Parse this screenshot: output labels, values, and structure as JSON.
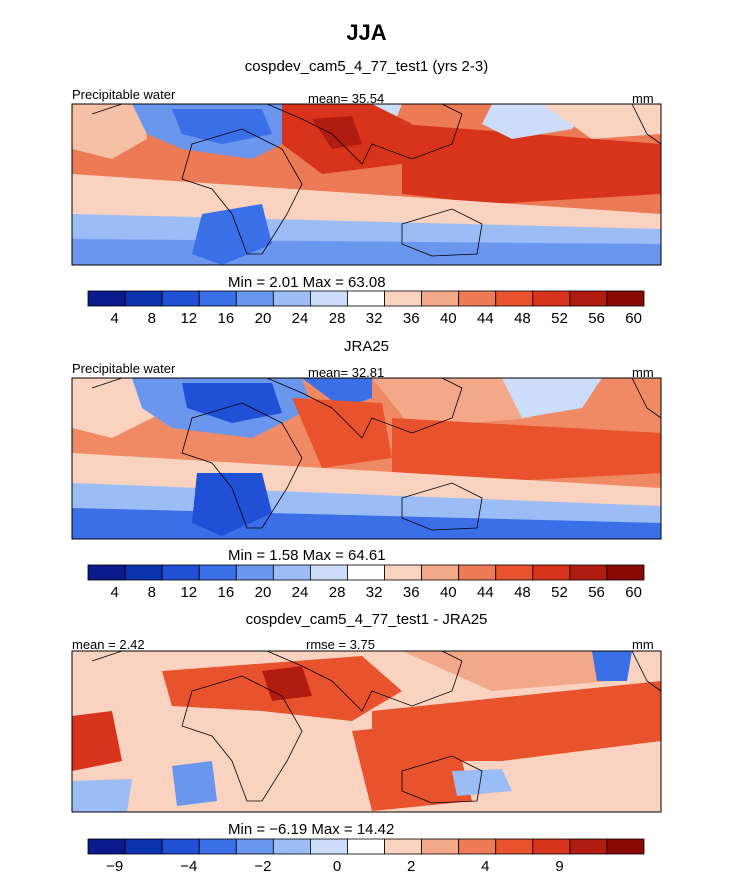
{
  "season": "JJA",
  "panels": [
    {
      "title": "cospdev_cam5_4_77_test1 (yrs 2-3)",
      "left_label": "Precipitable water",
      "mid_label": "mean=   35.54",
      "units": "mm",
      "stats": "Min =    2.01  Max =   63.08",
      "colorbar": {
        "colors": [
          "#0a1a8c",
          "#0b33b0",
          "#1f50d6",
          "#3a6fe8",
          "#6a96ee",
          "#9bbcf4",
          "#cbddf8",
          "#ffffff",
          "#f9d2c0",
          "#f4a88a",
          "#ef7b56",
          "#e8532e",
          "#d8341b",
          "#b21c10",
          "#8a0a06"
        ],
        "labels": [
          "4",
          "8",
          "12",
          "16",
          "20",
          "24",
          "28",
          "32",
          "36",
          "40",
          "44",
          "48",
          "52",
          "56",
          "60"
        ]
      }
    },
    {
      "title": "JRA25",
      "left_label": "Precipitable water",
      "mid_label": "mean=   32.81",
      "units": "mm",
      "stats": "Min =    1.58  Max =   64.61",
      "colorbar": {
        "colors": [
          "#0a1a8c",
          "#0b33b0",
          "#1f50d6",
          "#3a6fe8",
          "#6a96ee",
          "#9bbcf4",
          "#cbddf8",
          "#ffffff",
          "#f9d2c0",
          "#f4a88a",
          "#ef7b56",
          "#e8532e",
          "#d8341b",
          "#b21c10",
          "#8a0a06"
        ],
        "labels": [
          "4",
          "8",
          "12",
          "16",
          "20",
          "24",
          "28",
          "32",
          "36",
          "40",
          "44",
          "48",
          "52",
          "56",
          "60"
        ]
      }
    },
    {
      "title": "cospdev_cam5_4_77_test1 - JRA25",
      "left_label": "mean =    2.42",
      "mid_label": "rmse =    3.75",
      "units": "mm",
      "stats": "Min =   −6.19  Max =   14.42",
      "colorbar": {
        "colors": [
          "#0a1a8c",
          "#0b33b0",
          "#1f50d6",
          "#3a6fe8",
          "#6a96ee",
          "#9bbcf4",
          "#cbddf8",
          "#ffffff",
          "#f9d2c0",
          "#f4a88a",
          "#ef7b56",
          "#e8532e",
          "#d8341b",
          "#b21c10",
          "#8a0a06"
        ],
        "labels": [
          "−9",
          "",
          "−4",
          "",
          "−2",
          "",
          "0",
          "",
          "2",
          "",
          "4",
          "",
          "9",
          "",
          ""
        ]
      }
    }
  ],
  "chart_data": [
    {
      "type": "heatmap",
      "title": "cospdev_cam5_4_77_test1 (yrs 2-3)",
      "variable": "Precipitable water",
      "units": "mm",
      "mean": 35.54,
      "min": 2.01,
      "max": 63.08,
      "levels": [
        4,
        8,
        12,
        16,
        20,
        24,
        28,
        32,
        36,
        40,
        44,
        48,
        52,
        56,
        60
      ]
    },
    {
      "type": "heatmap",
      "title": "JRA25",
      "variable": "Precipitable water",
      "units": "mm",
      "mean": 32.81,
      "min": 1.58,
      "max": 64.61,
      "levels": [
        4,
        8,
        12,
        16,
        20,
        24,
        28,
        32,
        36,
        40,
        44,
        48,
        52,
        56,
        60
      ]
    },
    {
      "type": "heatmap",
      "title": "cospdev_cam5_4_77_test1 - JRA25",
      "units": "mm",
      "mean": 2.42,
      "rmse": 3.75,
      "min": -6.19,
      "max": 14.42,
      "levels": [
        -9,
        -4,
        -2,
        0,
        2,
        4,
        9
      ]
    }
  ]
}
